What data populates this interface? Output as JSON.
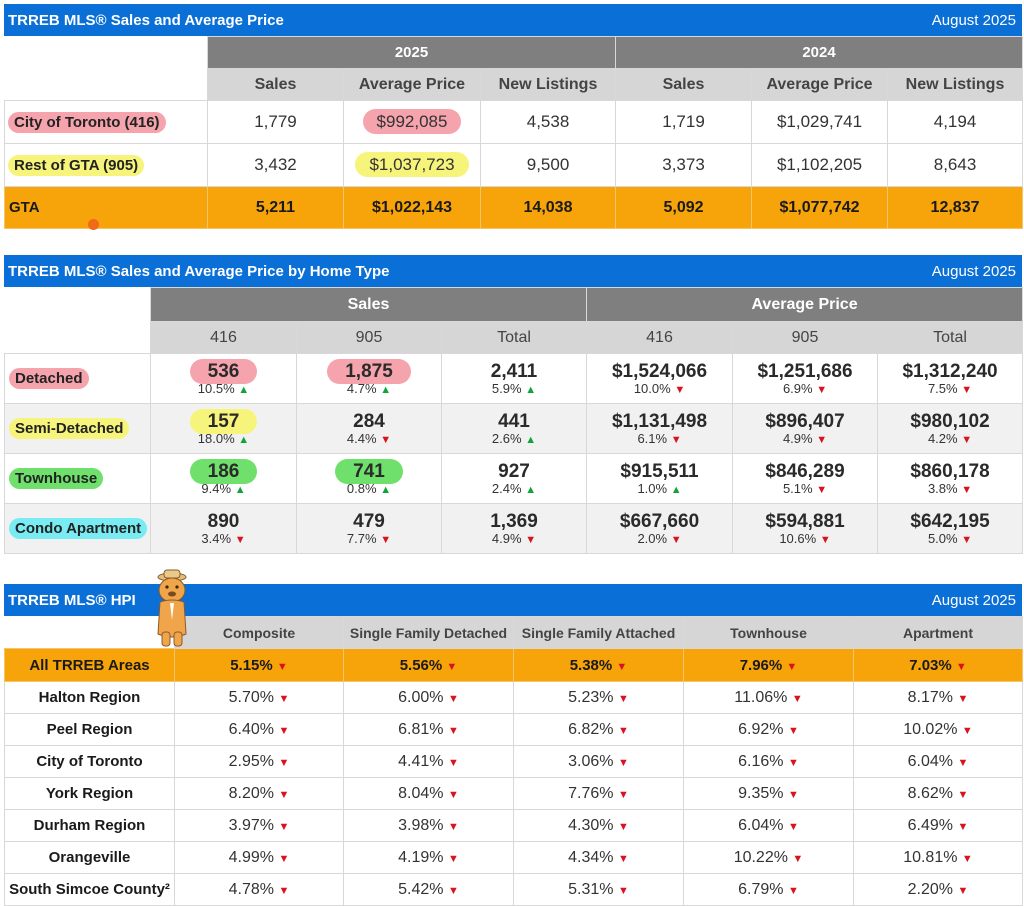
{
  "table1": {
    "title": "TRREB MLS® Sales and Average Price",
    "date": "August 2025",
    "groups": [
      "2025",
      "2024"
    ],
    "subheaders": [
      "Sales",
      "Average Price",
      "New Listings",
      "Sales",
      "Average Price",
      "New Listings"
    ],
    "rows": [
      {
        "label": "City of Toronto (416)",
        "values": [
          "1,779",
          "$992,085",
          "4,538",
          "1,719",
          "$1,029,741",
          "4,194"
        ]
      },
      {
        "label": "Rest of GTA (905)",
        "values": [
          "3,432",
          "$1,037,723",
          "9,500",
          "3,373",
          "$1,102,205",
          "8,643"
        ]
      },
      {
        "label": "GTA",
        "values": [
          "5,211",
          "$1,022,143",
          "14,038",
          "5,092",
          "$1,077,742",
          "12,837"
        ]
      }
    ]
  },
  "table2": {
    "title": "TRREB MLS® Sales and Average Price by Home Type",
    "date": "August 2025",
    "groups": [
      "Sales",
      "Average Price"
    ],
    "subheaders": [
      "416",
      "905",
      "Total",
      "416",
      "905",
      "Total"
    ],
    "rows": [
      {
        "label": "Detached",
        "cells": [
          {
            "v": "536",
            "p": "10.5%",
            "dir": "up"
          },
          {
            "v": "1,875",
            "p": "4.7%",
            "dir": "up"
          },
          {
            "v": "2,411",
            "p": "5.9%",
            "dir": "up"
          },
          {
            "v": "$1,524,066",
            "p": "10.0%",
            "dir": "down"
          },
          {
            "v": "$1,251,686",
            "p": "6.9%",
            "dir": "down"
          },
          {
            "v": "$1,312,240",
            "p": "7.5%",
            "dir": "down"
          }
        ]
      },
      {
        "label": "Semi-Detached",
        "cells": [
          {
            "v": "157",
            "p": "18.0%",
            "dir": "up"
          },
          {
            "v": "284",
            "p": "4.4%",
            "dir": "down"
          },
          {
            "v": "441",
            "p": "2.6%",
            "dir": "up"
          },
          {
            "v": "$1,131,498",
            "p": "6.1%",
            "dir": "down"
          },
          {
            "v": "$896,407",
            "p": "4.9%",
            "dir": "down"
          },
          {
            "v": "$980,102",
            "p": "4.2%",
            "dir": "down"
          }
        ]
      },
      {
        "label": "Townhouse",
        "cells": [
          {
            "v": "186",
            "p": "9.4%",
            "dir": "up"
          },
          {
            "v": "741",
            "p": "0.8%",
            "dir": "up"
          },
          {
            "v": "927",
            "p": "2.4%",
            "dir": "up"
          },
          {
            "v": "$915,511",
            "p": "1.0%",
            "dir": "up"
          },
          {
            "v": "$846,289",
            "p": "5.1%",
            "dir": "down"
          },
          {
            "v": "$860,178",
            "p": "3.8%",
            "dir": "down"
          }
        ]
      },
      {
        "label": "Condo Apartment",
        "cells": [
          {
            "v": "890",
            "p": "3.4%",
            "dir": "down"
          },
          {
            "v": "479",
            "p": "7.7%",
            "dir": "down"
          },
          {
            "v": "1,369",
            "p": "4.9%",
            "dir": "down"
          },
          {
            "v": "$667,660",
            "p": "2.0%",
            "dir": "down"
          },
          {
            "v": "$594,881",
            "p": "10.6%",
            "dir": "down"
          },
          {
            "v": "$642,195",
            "p": "5.0%",
            "dir": "down"
          }
        ]
      }
    ]
  },
  "table3": {
    "title": "TRREB MLS® HPI",
    "date": "August 2025",
    "headers": [
      "Composite",
      "Single Family Detached",
      "Single Family Attached",
      "Townhouse",
      "Apartment"
    ],
    "rows": [
      {
        "label": "All TRREB Areas",
        "values": [
          "5.15%",
          "5.56%",
          "5.38%",
          "7.96%",
          "7.03%"
        ]
      },
      {
        "label": "Halton Region",
        "values": [
          "5.70%",
          "6.00%",
          "5.23%",
          "11.06%",
          "8.17%"
        ]
      },
      {
        "label": "Peel Region",
        "values": [
          "6.40%",
          "6.81%",
          "6.82%",
          "6.92%",
          "10.02%"
        ]
      },
      {
        "label": "City of Toronto",
        "values": [
          "2.95%",
          "4.41%",
          "3.06%",
          "6.16%",
          "6.04%"
        ]
      },
      {
        "label": "York Region",
        "values": [
          "8.20%",
          "8.04%",
          "7.76%",
          "9.35%",
          "8.62%"
        ]
      },
      {
        "label": "Durham Region",
        "values": [
          "3.97%",
          "3.98%",
          "4.30%",
          "6.04%",
          "6.49%"
        ]
      },
      {
        "label": "Orangeville",
        "values": [
          "4.99%",
          "4.19%",
          "4.34%",
          "10.22%",
          "10.81%"
        ]
      },
      {
        "label": "South Simcoe County²",
        "values": [
          "4.78%",
          "5.42%",
          "5.31%",
          "6.79%",
          "2.20%"
        ]
      }
    ]
  },
  "arrows": {
    "up": "▲",
    "down": "▼"
  },
  "colors": {
    "title_bar": "#0a6fd6",
    "group_header": "#7f7f7f",
    "sub_header": "#d6d6d6",
    "total_row": "#f7a30a",
    "up_arrow": "#12a33b",
    "down_arrow": "#d9121f",
    "highlight_pink": "#f5a3ad",
    "highlight_yellow": "#f6f47a",
    "highlight_green": "#6ee06b",
    "highlight_cyan": "#78ecf2"
  }
}
